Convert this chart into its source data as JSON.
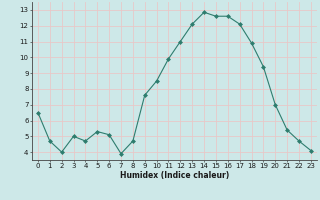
{
  "x": [
    0,
    1,
    2,
    3,
    4,
    5,
    6,
    7,
    8,
    9,
    10,
    11,
    12,
    13,
    14,
    15,
    16,
    17,
    18,
    19,
    20,
    21,
    22,
    23
  ],
  "y": [
    6.5,
    4.7,
    4.0,
    5.0,
    4.7,
    5.3,
    5.1,
    3.9,
    4.7,
    7.6,
    8.5,
    9.9,
    11.0,
    12.1,
    12.85,
    12.6,
    12.6,
    12.1,
    10.9,
    9.4,
    7.0,
    5.4,
    4.7,
    4.1
  ],
  "line_color": "#2e7d6e",
  "marker": "D",
  "marker_size": 2.0,
  "bg_color": "#cde8e8",
  "grid_color": "#e8c8c8",
  "xlabel": "Humidex (Indice chaleur)",
  "ylabel_ticks": [
    4,
    5,
    6,
    7,
    8,
    9,
    10,
    11,
    12,
    13
  ],
  "xlim": [
    -0.5,
    23.5
  ],
  "ylim": [
    3.5,
    13.5
  ],
  "xlabel_fontsize": 5.5,
  "tick_fontsize": 5.0
}
